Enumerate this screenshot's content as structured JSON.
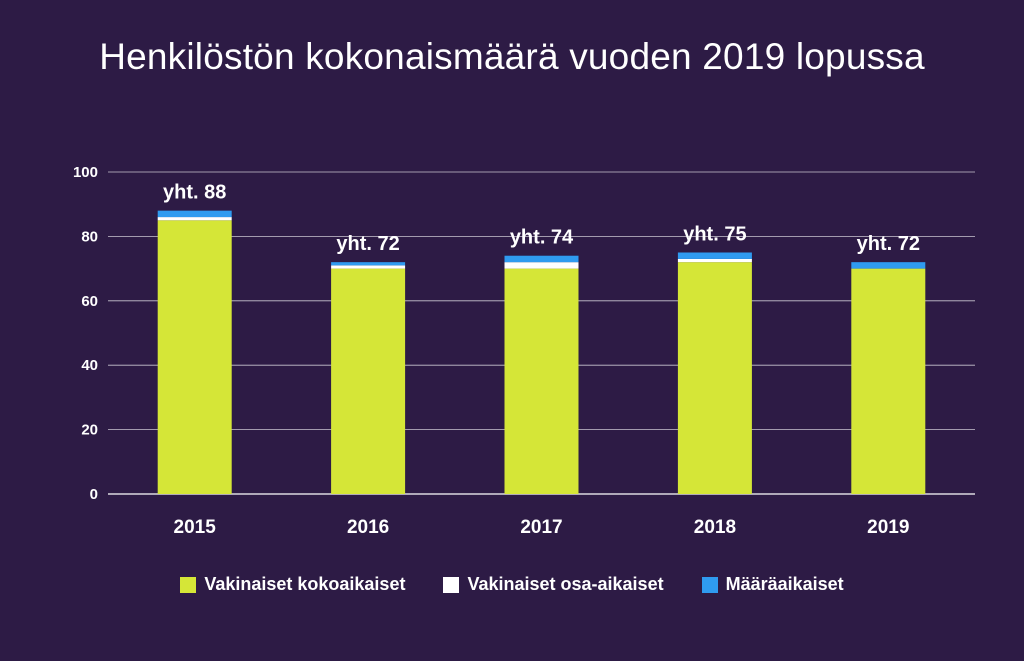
{
  "chart_data": {
    "type": "bar",
    "stacked": true,
    "title": "Henkilöstön kokonaismäärä vuoden 2019 lopussa",
    "categories": [
      "2015",
      "2016",
      "2017",
      "2018",
      "2019"
    ],
    "series": [
      {
        "name": "Vakinaiset kokoaikaiset",
        "color": "#d5e637",
        "values": [
          85,
          70,
          70,
          72,
          70
        ]
      },
      {
        "name": "Vakinaiset osa-aikaiset",
        "color": "#ffffff",
        "values": [
          1,
          1,
          2,
          1,
          0
        ]
      },
      {
        "name": "Määräaikaiset",
        "color": "#2f9bf0",
        "values": [
          2,
          1,
          2,
          2,
          2
        ]
      }
    ],
    "totals": [
      "yht. 88",
      "yht. 72",
      "yht. 74",
      "yht. 75",
      "yht. 72"
    ],
    "ylim": [
      0,
      100
    ],
    "yticks": [
      "0",
      "20",
      "40",
      "60",
      "80",
      "100"
    ],
    "grid": true,
    "legend_position": "bottom"
  }
}
